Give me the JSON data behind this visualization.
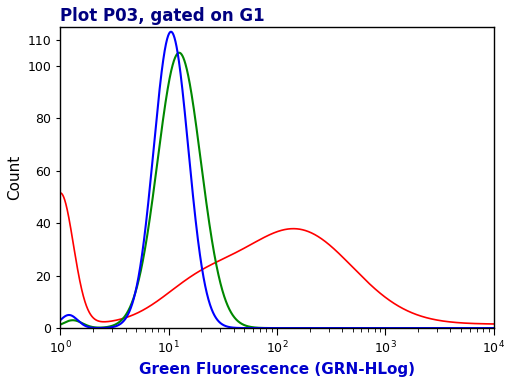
{
  "title": "Plot P03, gated on G1",
  "xlabel": "Green Fluorescence (GRN-HLog)",
  "ylabel": "Count",
  "xmin": 1,
  "xmax": 10000,
  "ymin": 0,
  "ymax": 115,
  "yticks": [
    0,
    20,
    40,
    60,
    80,
    100,
    110
  ],
  "background_color": "#ffffff",
  "blue_color": "#0000ff",
  "green_color": "#008800",
  "red_color": "#ff0000",
  "title_color": "#000080",
  "xlabel_color": "#0000cc",
  "ylabel_color": "#000000",
  "blue_peak_x": 10.5,
  "blue_peak_y": 113,
  "blue_sigma": 0.16,
  "green_peak_x": 12.5,
  "green_peak_y": 105,
  "green_sigma": 0.2,
  "red_start_y": 50,
  "red_peak_x": 150,
  "red_peak_y": 36,
  "red_sigma": 0.52
}
